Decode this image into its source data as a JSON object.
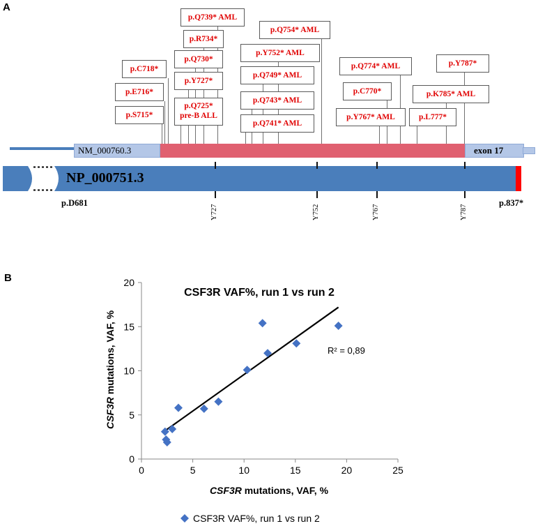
{
  "panel_a": {
    "label": "A",
    "transcript_label": "NM_000760.3",
    "exon_label": "exon 17",
    "protein_label": "NP_000751.3",
    "start_label": "p.D681",
    "end_label": "p.837*",
    "sites": [
      "Y727",
      "Y752",
      "Y767",
      "Y787"
    ],
    "mutations": [
      {
        "line1": "p.S715*",
        "line2": ""
      },
      {
        "line1": "p.E716*",
        "line2": ""
      },
      {
        "line1": "p.C718*",
        "line2": ""
      },
      {
        "line1": "p.Q725*",
        "line2": "pre-B ALL"
      },
      {
        "line1": "p.Y727*",
        "line2": ""
      },
      {
        "line1": "p.Q730*",
        "line2": ""
      },
      {
        "line1": "p.R734*",
        "line2": ""
      },
      {
        "line1": "p.Q739* AML",
        "line2": ""
      },
      {
        "line1": "p.Q741* AML",
        "line2": ""
      },
      {
        "line1": "p.Q743* AML",
        "line2": ""
      },
      {
        "line1": "p.Q749* AML",
        "line2": ""
      },
      {
        "line1": "p.Y752* AML",
        "line2": ""
      },
      {
        "line1": "p.Q754* AML",
        "line2": ""
      },
      {
        "line1": "p.Y767* AML",
        "line2": ""
      },
      {
        "line1": "p.C770*",
        "line2": ""
      },
      {
        "line1": "p.Q774* AML",
        "line2": ""
      },
      {
        "line1": "p.L777*",
        "line2": ""
      },
      {
        "line1": "p.K785* AML",
        "line2": ""
      },
      {
        "line1": "p.Y787*",
        "line2": ""
      }
    ],
    "colors": {
      "exon_bar": "#b4c7e7",
      "red_region": "#e06070",
      "protein_bar": "#4a7ebb",
      "stop_red": "#ff0000",
      "label_red": "#e00000"
    }
  },
  "panel_b": {
    "label": "B",
    "chart_data": {
      "type": "scatter",
      "title": "CSF3R VAF%, run 1 vs run 2",
      "xlabel_italic": "CSF3R",
      "xlabel_rest": " mutations, VAF, %",
      "ylabel_italic": "CSF3R",
      "ylabel_rest": " mutations, VAF, %",
      "xlim": [
        0,
        25
      ],
      "ylim": [
        0,
        20
      ],
      "xticks": [
        0,
        5,
        10,
        15,
        20,
        25
      ],
      "yticks": [
        0,
        5,
        10,
        15,
        20
      ],
      "series": [
        {
          "name": "CSF3R VAF%, run 1 vs run 2",
          "color": "#4472c4",
          "points": [
            [
              2.3,
              3.1
            ],
            [
              2.4,
              2.2
            ],
            [
              2.5,
              1.9
            ],
            [
              3.0,
              3.4
            ],
            [
              3.6,
              5.8
            ],
            [
              6.1,
              5.7
            ],
            [
              7.5,
              6.5
            ],
            [
              10.3,
              10.1
            ],
            [
              11.8,
              15.4
            ],
            [
              12.3,
              12.0
            ],
            [
              15.1,
              13.1
            ],
            [
              19.2,
              15.1
            ]
          ]
        }
      ],
      "trendline": {
        "x": [
          2.3,
          19.2
        ],
        "y": [
          3.2,
          17.2
        ],
        "color": "#000000"
      },
      "r2_label": "R² = 0,89",
      "legend": "bottom"
    }
  }
}
